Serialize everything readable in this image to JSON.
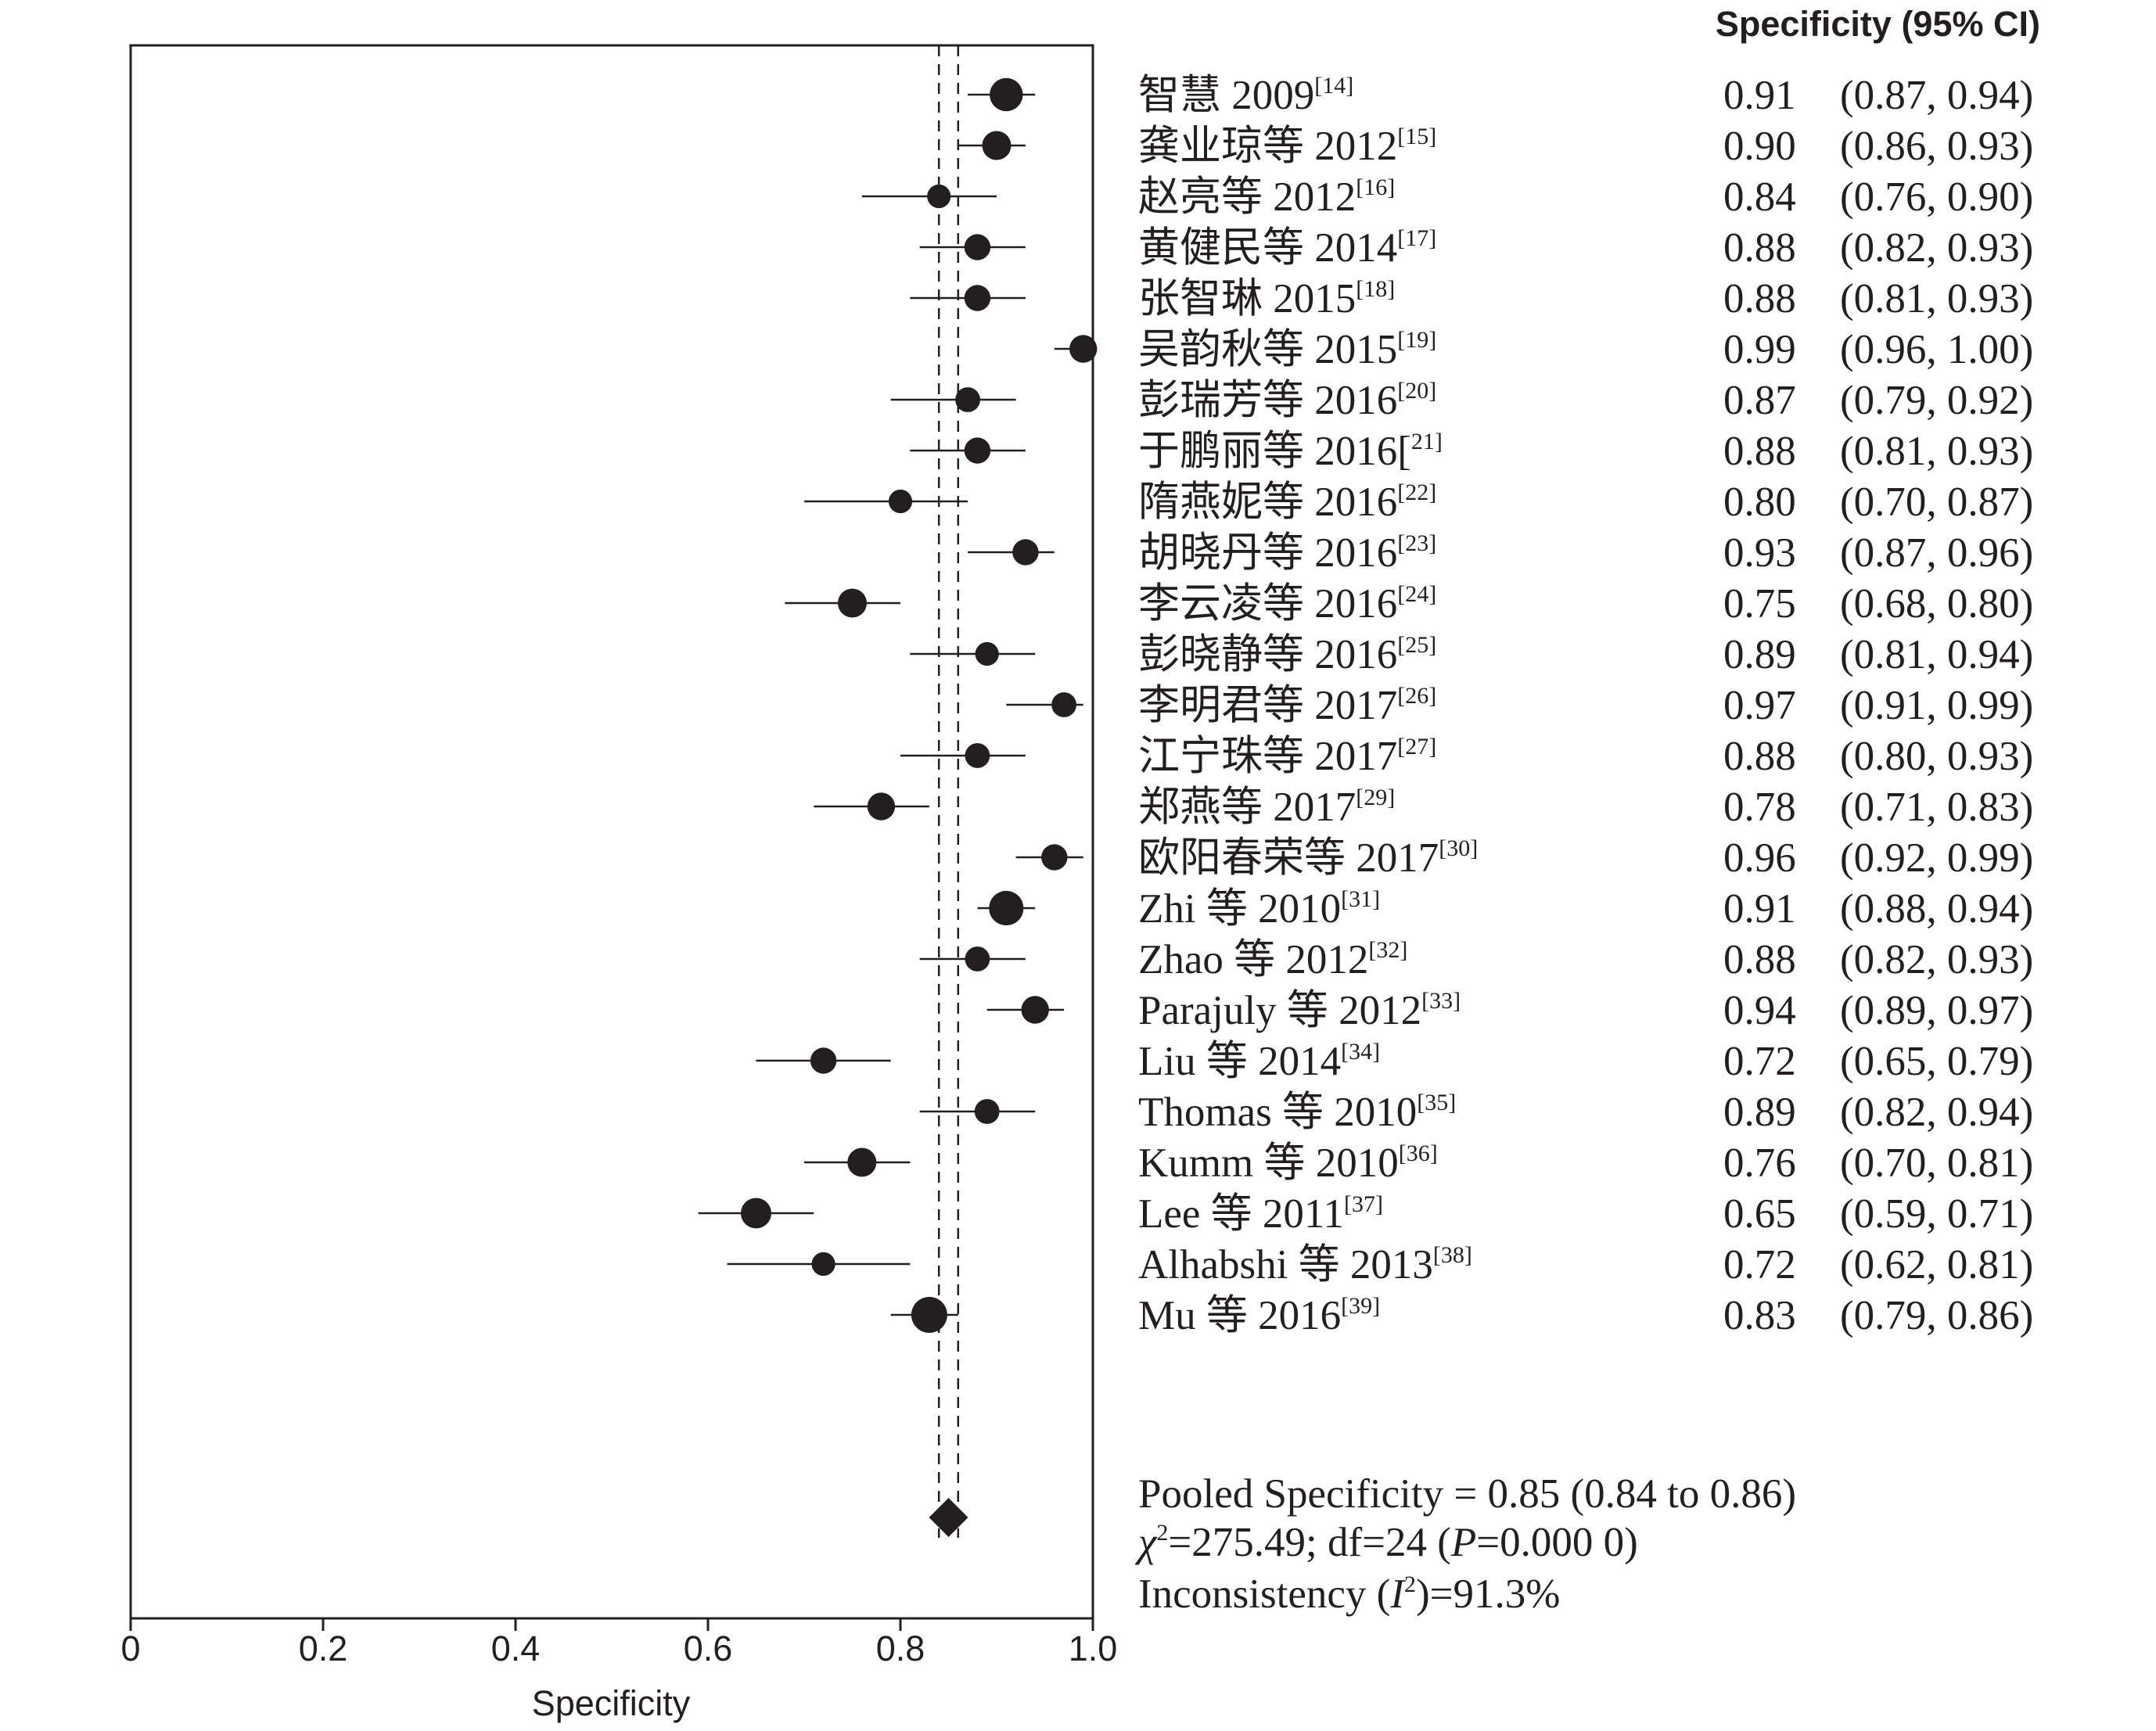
{
  "chart_data": {
    "type": "scatter",
    "subtype": "forest",
    "column_header": "Specificity (95% CI)",
    "xlabel": "Specificity",
    "ylabel": "",
    "xlim": [
      0,
      1.0
    ],
    "xtick_values": [
      0,
      0.2,
      0.4,
      0.6,
      0.8,
      1.0
    ],
    "xtick_labels": [
      "0",
      "0.2",
      "0.4",
      "0.6",
      "0.8",
      "1.0"
    ],
    "grid": false,
    "studies": [
      {
        "name": "智慧 2009",
        "ref": "[14]",
        "specificity": 0.91,
        "ci_low": 0.87,
        "ci_high": 0.94,
        "spec_label": "0.91",
        "ci_label": "(0.87, 0.94)",
        "weight": 0.85
      },
      {
        "name": "龚业琼等 2012",
        "ref": "[15]",
        "specificity": 0.9,
        "ci_low": 0.86,
        "ci_high": 0.93,
        "spec_label": "0.90",
        "ci_label": "(0.86, 0.93)",
        "weight": 0.65
      },
      {
        "name": "赵亮等 2012",
        "ref": "[16]",
        "specificity": 0.84,
        "ci_low": 0.76,
        "ci_high": 0.9,
        "spec_label": "0.84",
        "ci_label": "(0.76, 0.90)",
        "weight": 0.43
      },
      {
        "name": "黄健民等 2014",
        "ref": "[17]",
        "specificity": 0.88,
        "ci_low": 0.82,
        "ci_high": 0.93,
        "spec_label": "0.88",
        "ci_label": "(0.82, 0.93)",
        "weight": 0.53
      },
      {
        "name": "张智琳 2015",
        "ref": "[18]",
        "specificity": 0.88,
        "ci_low": 0.81,
        "ci_high": 0.93,
        "spec_label": "0.88",
        "ci_label": "(0.81, 0.93)",
        "weight": 0.53
      },
      {
        "name": "吴韵秋等 2015",
        "ref": "[19]",
        "specificity": 0.99,
        "ci_low": 0.96,
        "ci_high": 1.0,
        "spec_label": "0.99",
        "ci_label": "(0.96, 1.00)",
        "weight": 0.59
      },
      {
        "name": "彭瑞芳等 2016",
        "ref": "[20]",
        "specificity": 0.87,
        "ci_low": 0.79,
        "ci_high": 0.92,
        "spec_label": "0.87",
        "ci_label": "(0.79, 0.92)",
        "weight": 0.48
      },
      {
        "name": "于鹏丽等 2016[",
        "ref": "21]",
        "specificity": 0.88,
        "ci_low": 0.81,
        "ci_high": 0.93,
        "spec_label": "0.88",
        "ci_label": "(0.81, 0.93)",
        "weight": 0.53
      },
      {
        "name": "隋燕妮等 2016",
        "ref": "[22]",
        "specificity": 0.8,
        "ci_low": 0.7,
        "ci_high": 0.87,
        "spec_label": "0.80",
        "ci_label": "(0.70, 0.87)",
        "weight": 0.43
      },
      {
        "name": "胡晓丹等 2016",
        "ref": "[23]",
        "specificity": 0.93,
        "ci_low": 0.87,
        "ci_high": 0.96,
        "spec_label": "0.93",
        "ci_label": "(0.87, 0.96)",
        "weight": 0.53
      },
      {
        "name": "李云凌等 2016",
        "ref": "[24]",
        "specificity": 0.75,
        "ci_low": 0.68,
        "ci_high": 0.8,
        "spec_label": "0.75",
        "ci_label": "(0.68, 0.80)",
        "weight": 0.65
      },
      {
        "name": "彭晓静等 2016",
        "ref": "[25]",
        "specificity": 0.89,
        "ci_low": 0.81,
        "ci_high": 0.94,
        "spec_label": "0.89",
        "ci_label": "(0.81, 0.94)",
        "weight": 0.43
      },
      {
        "name": "李明君等 2017",
        "ref": "[26]",
        "specificity": 0.97,
        "ci_low": 0.91,
        "ci_high": 0.99,
        "spec_label": "0.97",
        "ci_label": "(0.91, 0.99)",
        "weight": 0.48
      },
      {
        "name": "江宁珠等 2017",
        "ref": "[27]",
        "specificity": 0.88,
        "ci_low": 0.8,
        "ci_high": 0.93,
        "spec_label": "0.88",
        "ci_label": "(0.80, 0.93)",
        "weight": 0.48
      },
      {
        "name": "郑燕等 2017",
        "ref": "[29]",
        "specificity": 0.78,
        "ci_low": 0.71,
        "ci_high": 0.83,
        "spec_label": "0.78",
        "ci_label": "(0.71, 0.83)",
        "weight": 0.59
      },
      {
        "name": "欧阳春荣等 2017",
        "ref": "[30]",
        "specificity": 0.96,
        "ci_low": 0.92,
        "ci_high": 0.99,
        "spec_label": "0.96",
        "ci_label": "(0.92, 0.99)",
        "weight": 0.53
      },
      {
        "name": "Zhi 等 2010",
        "ref": "[31]",
        "specificity": 0.91,
        "ci_low": 0.88,
        "ci_high": 0.94,
        "spec_label": "0.91",
        "ci_label": "(0.88, 0.94)",
        "weight": 0.92
      },
      {
        "name": "Zhao 等 2012",
        "ref": "[32]",
        "specificity": 0.88,
        "ci_low": 0.82,
        "ci_high": 0.93,
        "spec_label": "0.88",
        "ci_label": "(0.82, 0.93)",
        "weight": 0.48
      },
      {
        "name": "Parajuly 等 2012",
        "ref": "[33]",
        "specificity": 0.94,
        "ci_low": 0.89,
        "ci_high": 0.97,
        "spec_label": "0.94",
        "ci_label": "(0.89, 0.97)",
        "weight": 0.59
      },
      {
        "name": "Liu 等 2014",
        "ref": "[34]",
        "specificity": 0.72,
        "ci_low": 0.65,
        "ci_high": 0.79,
        "spec_label": "0.72",
        "ci_label": "(0.65, 0.79)",
        "weight": 0.53
      },
      {
        "name": "Thomas 等 2010",
        "ref": "[35]",
        "specificity": 0.89,
        "ci_low": 0.82,
        "ci_high": 0.94,
        "spec_label": "0.89",
        "ci_label": "(0.82, 0.94)",
        "weight": 0.48
      },
      {
        "name": "Kumm 等 2010",
        "ref": "[36]",
        "specificity": 0.76,
        "ci_low": 0.7,
        "ci_high": 0.81,
        "spec_label": "0.76",
        "ci_label": "(0.70, 0.81)",
        "weight": 0.65
      },
      {
        "name": "Lee 等 2011",
        "ref": "[37]",
        "specificity": 0.65,
        "ci_low": 0.59,
        "ci_high": 0.71,
        "spec_label": "0.65",
        "ci_label": "(0.59, 0.71)",
        "weight": 0.72
      },
      {
        "name": "Alhabshi 等 2013",
        "ref": "[38]",
        "specificity": 0.72,
        "ci_low": 0.62,
        "ci_high": 0.81,
        "spec_label": "0.72",
        "ci_label": "(0.62, 0.81)",
        "weight": 0.43
      },
      {
        "name": "Mu 等 2016",
        "ref": "[39]",
        "specificity": 0.83,
        "ci_low": 0.79,
        "ci_high": 0.86,
        "spec_label": "0.83",
        "ci_label": "(0.79, 0.86)",
        "weight": 1.0
      }
    ],
    "pooled": {
      "specificity": 0.85,
      "ci_low": 0.84,
      "ci_high": 0.86,
      "summary_text": "Pooled Specificity = 0.85 (0.84 to 0.86)",
      "heterogeneity": {
        "chi_symbol": "χ",
        "chi_exponent": "2",
        "chi_text": "=275.49; df=24 (",
        "p_symbol": "P",
        "p_text": "=0.000 0)"
      },
      "inconsistency": {
        "prefix": "Inconsistency (",
        "i_symbol": "I",
        "i_exponent": "2",
        "suffix": ")=91.3%"
      }
    }
  },
  "colors": {
    "ink": "#231f20",
    "background": "#ffffff"
  }
}
